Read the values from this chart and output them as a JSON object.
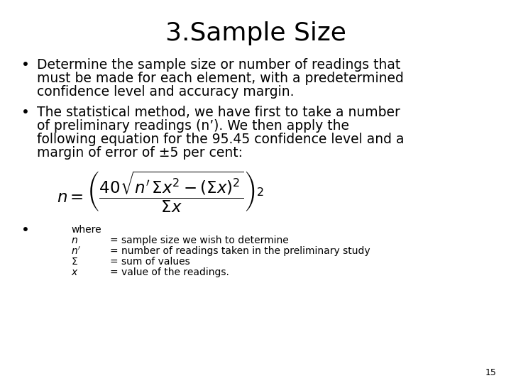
{
  "title": "3.Sample Size",
  "bg_color": "#ffffff",
  "text_color": "#000000",
  "title_fontsize": 26,
  "body_fontsize": 13.5,
  "small_fontsize": 10,
  "page_number": "15",
  "bullet1_lines": [
    "Determine the sample size or number of readings that",
    "must be made for each element, with a predetermined",
    "confidence level and accuracy margin."
  ],
  "bullet2_lines": [
    "The statistical method, we have first to take a number",
    "of preliminary readings (n’). We then apply the",
    "following equation for the 95.45 confidence level and a",
    "margin of error of ±5 per cent:"
  ],
  "where_label": "where",
  "defs_vars": [
    "$n$",
    "$n^{\\prime}$",
    "$\\Sigma$",
    "$x$"
  ],
  "defs_text": [
    "= sample size we wish to determine",
    "= number of readings taken in the preliminary study",
    "= sum of values",
    "= value of the readings."
  ]
}
